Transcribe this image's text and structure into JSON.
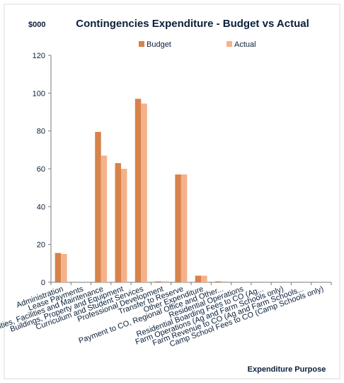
{
  "colors": {
    "budget": "#d7824a",
    "actual": "#f5b18a",
    "axis": "#7a7a7a",
    "text": "#0b1f3a",
    "frame": "#bfbfbf"
  },
  "chart_data": {
    "type": "bar",
    "title": "Contingencies Expenditure - Budget vs Actual",
    "unit_label": "$000",
    "xlabel": "Expenditure Purpose",
    "ylabel": "",
    "ylim": [
      0,
      120
    ],
    "yticks": [
      0,
      20,
      40,
      60,
      80,
      100,
      120
    ],
    "grid": false,
    "legend_position": "top",
    "categories": [
      "Administration",
      "Lease Payments",
      "Facilities, Facilities and Maintenance",
      "Buildings, Property and Equipment",
      "Curriculum and Student Services",
      "Professional Development",
      "Transfer to Reserve",
      "Other Expenditure",
      "Payment to CO, Regional Office and Other...",
      "Residential Operations",
      "Residential Boarding Fees to CO (Ag...",
      "Farm Operations (Ag and Farm Schools only)",
      "Farm Revenue to CO (Ag and Farm Schools...",
      "Camp School Fees to CO (Camp Schools only)"
    ],
    "series": [
      {
        "name": "Budget",
        "values": [
          15.5,
          0,
          79.5,
          63,
          97,
          0.5,
          57,
          3.5,
          0.5,
          0,
          0,
          0,
          0,
          0
        ]
      },
      {
        "name": "Actual",
        "values": [
          15,
          0,
          67,
          60,
          94.5,
          0.5,
          57,
          3.5,
          0.5,
          0,
          0,
          0,
          0,
          0
        ]
      }
    ]
  }
}
